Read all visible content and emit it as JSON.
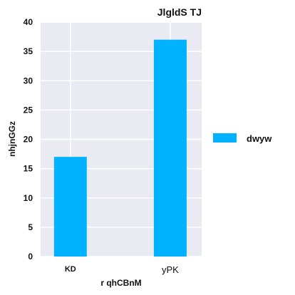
{
  "chart_data": {
    "type": "bar",
    "title": "JlgldS TJ",
    "xlabel": "r qhCBnM",
    "ylabel": "nhjnGGz",
    "categories": [
      "KD",
      "yPK"
    ],
    "series": [
      {
        "name": "dwyw",
        "values": [
          17,
          37
        ],
        "color": "#00b2ff"
      }
    ],
    "ylim": [
      0,
      40
    ],
    "yticks": [
      0,
      5,
      10,
      15,
      20,
      25,
      30,
      35,
      40
    ],
    "grid": true,
    "legend": "right",
    "background": "#e9eaf2"
  }
}
